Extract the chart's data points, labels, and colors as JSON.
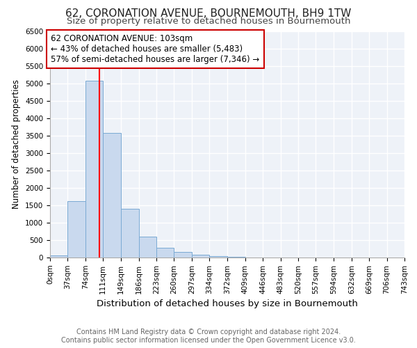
{
  "title1": "62, CORONATION AVENUE, BOURNEMOUTH, BH9 1TW",
  "title2": "Size of property relative to detached houses in Bournemouth",
  "xlabel": "Distribution of detached houses by size in Bournemouth",
  "ylabel": "Number of detached properties",
  "footer1": "Contains HM Land Registry data © Crown copyright and database right 2024.",
  "footer2": "Contains public sector information licensed under the Open Government Licence v3.0.",
  "annotation_line1": "62 CORONATION AVENUE: 103sqm",
  "annotation_line2": "← 43% of detached houses are smaller (5,483)",
  "annotation_line3": "57% of semi-detached houses are larger (7,346) →",
  "bar_color": "#c9d9ee",
  "bar_edge_color": "#7aaad4",
  "red_line_x": 103,
  "bin_edges": [
    0,
    37,
    74,
    111,
    149,
    186,
    223,
    260,
    297,
    334,
    372,
    409,
    446,
    483,
    520,
    557,
    594,
    632,
    669,
    706,
    743
  ],
  "bin_labels": [
    "0sqm",
    "37sqm",
    "74sqm",
    "111sqm",
    "149sqm",
    "186sqm",
    "223sqm",
    "260sqm",
    "297sqm",
    "334sqm",
    "372sqm",
    "409sqm",
    "446sqm",
    "483sqm",
    "520sqm",
    "557sqm",
    "594sqm",
    "632sqm",
    "669sqm",
    "706sqm",
    "743sqm"
  ],
  "bar_heights": [
    55,
    1630,
    5080,
    3580,
    1400,
    610,
    290,
    155,
    90,
    45,
    20,
    8,
    4,
    0,
    0,
    0,
    0,
    0,
    0,
    0
  ],
  "ylim": [
    0,
    6500
  ],
  "yticks": [
    0,
    500,
    1000,
    1500,
    2000,
    2500,
    3000,
    3500,
    4000,
    4500,
    5000,
    5500,
    6000,
    6500
  ],
  "background_color": "#eef2f8",
  "grid_color": "#ffffff",
  "annotation_box_color": "#ffffff",
  "annotation_box_edge": "#cc0000",
  "title1_fontsize": 11,
  "title2_fontsize": 9.5,
  "xlabel_fontsize": 9.5,
  "ylabel_fontsize": 8.5,
  "tick_fontsize": 7.5,
  "footer_fontsize": 7,
  "annotation_fontsize": 8.5
}
